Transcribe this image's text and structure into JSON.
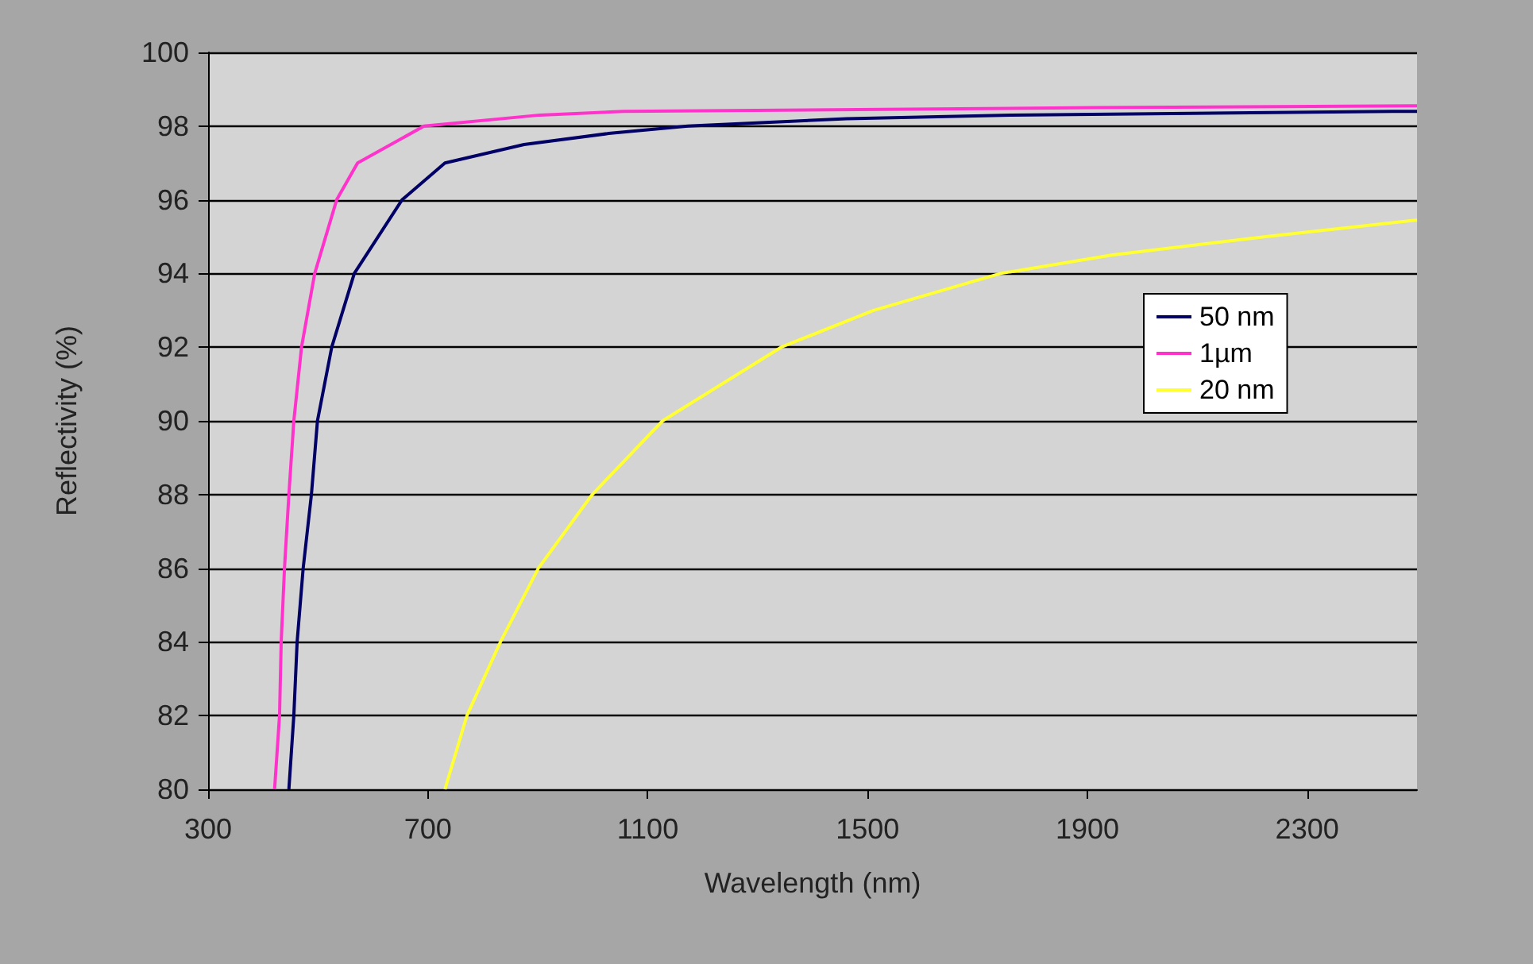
{
  "chart_data": {
    "type": "line",
    "xlabel": "Wavelength (nm)",
    "ylabel": "Reflectivity (%)",
    "xlim": [
      300,
      2500
    ],
    "xticks": [
      300,
      700,
      1100,
      1500,
      1900,
      2300
    ],
    "ylim": [
      80,
      100
    ],
    "yticks": [
      80,
      82,
      84,
      86,
      88,
      90,
      92,
      94,
      96,
      98,
      100
    ],
    "grid": "y",
    "legend": "right",
    "marker": "none",
    "line_style": "solid",
    "series": [
      {
        "name": "50 nm",
        "color": "#000066",
        "x": [
          447,
          456,
          462,
          473,
          488,
          499,
          525,
          566,
          653,
          731,
          875,
          1029,
          1173,
          1462,
          1762,
          2456,
          2500
        ],
        "values": [
          80,
          82,
          84,
          86,
          88,
          90,
          92,
          94,
          96,
          97,
          97.5,
          97.8,
          98,
          98.2,
          98.3,
          98.4,
          98.4
        ]
      },
      {
        "name": "1µm",
        "color": "#ff33cc",
        "x": [
          421,
          430,
          433,
          439,
          447,
          456,
          470,
          494,
          534,
          572,
          693,
          904,
          1057,
          1915,
          2500
        ],
        "values": [
          80,
          82,
          84,
          86,
          88,
          90,
          92,
          94,
          96,
          97,
          98,
          98.3,
          98.4,
          98.5,
          98.55
        ]
      },
      {
        "name": "20 nm",
        "color": "#ffff33",
        "x": [
          731,
          771,
          832,
          901,
          999,
          1127,
          1343,
          1511,
          1742,
          1944,
          2225,
          2500
        ],
        "values": [
          80,
          82,
          84,
          86,
          88,
          90,
          92,
          93,
          94,
          94.5,
          95,
          95.45
        ]
      }
    ]
  }
}
